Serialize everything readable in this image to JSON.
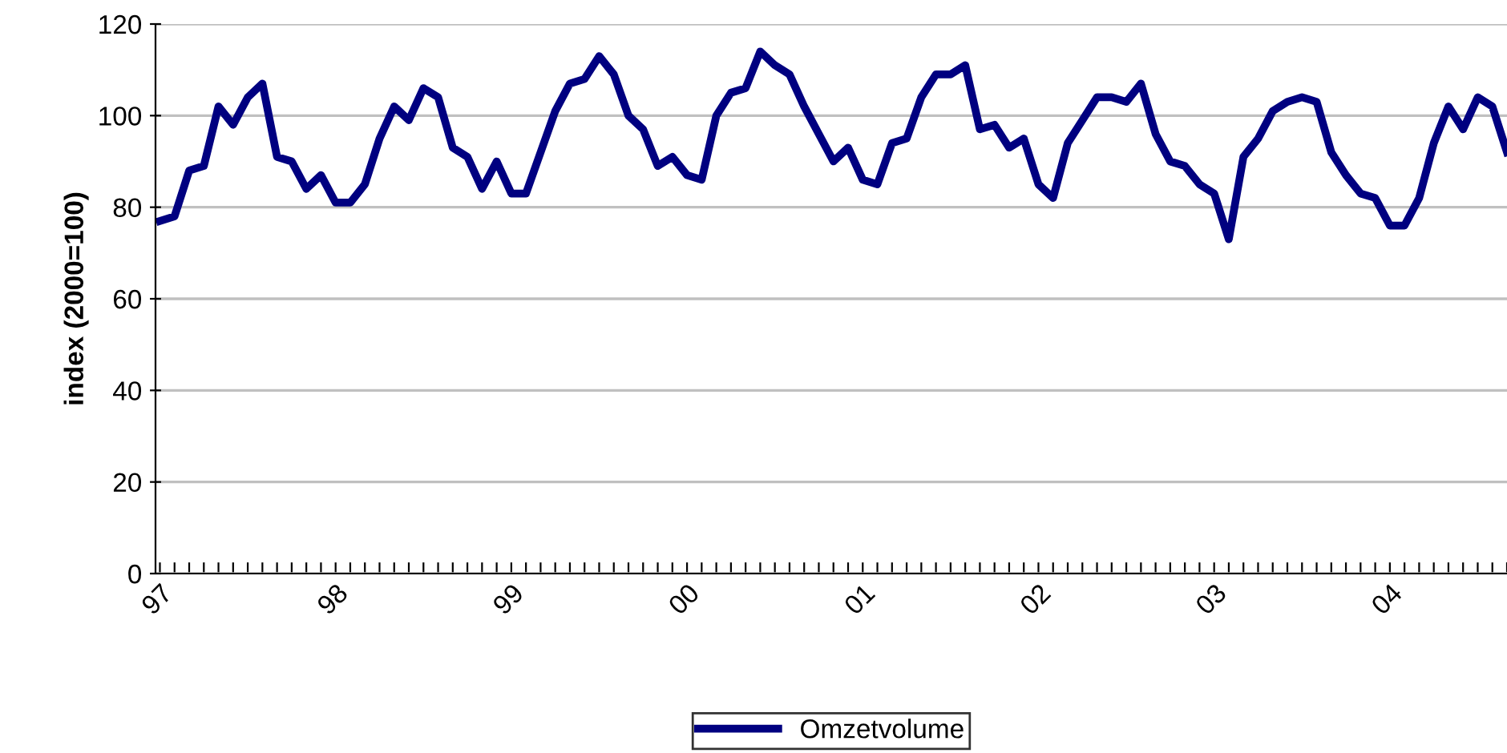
{
  "chart_data": {
    "type": "line",
    "ylabel": "index (2000=100)",
    "categories": [
      "97",
      null,
      null,
      null,
      null,
      null,
      null,
      null,
      null,
      null,
      null,
      null,
      "98",
      null,
      null,
      null,
      null,
      null,
      null,
      null,
      null,
      null,
      null,
      null,
      "99",
      null,
      null,
      null,
      null,
      null,
      null,
      null,
      null,
      null,
      null,
      null,
      "00",
      null,
      null,
      null,
      null,
      null,
      null,
      null,
      null,
      null,
      null,
      null,
      "01",
      null,
      null,
      null,
      null,
      null,
      null,
      null,
      null,
      null,
      null,
      null,
      "02",
      null,
      null,
      null,
      null,
      null,
      null,
      null,
      null,
      null,
      null,
      null,
      "03",
      null,
      null,
      null,
      null,
      null,
      null,
      null,
      null,
      null,
      null,
      null,
      "04",
      null,
      null,
      null,
      null,
      null,
      null,
      null,
      null
    ],
    "series": [
      {
        "name": "Omzetvolume",
        "color": "#000080",
        "values": [
          77,
          78,
          88,
          89,
          102,
          98,
          104,
          107,
          91,
          90,
          84,
          87,
          81,
          81,
          85,
          95,
          102,
          99,
          106,
          104,
          93,
          91,
          84,
          90,
          83,
          83,
          92,
          101,
          107,
          108,
          113,
          109,
          100,
          97,
          89,
          91,
          87,
          86,
          100,
          105,
          106,
          114,
          111,
          109,
          102,
          96,
          90,
          93,
          86,
          85,
          94,
          95,
          104,
          109,
          109,
          111,
          97,
          98,
          93,
          95,
          85,
          82,
          94,
          99,
          104,
          104,
          103,
          107,
          96,
          90,
          89,
          85,
          83,
          73,
          91,
          95,
          101,
          103,
          104,
          103,
          92,
          87,
          83,
          82,
          76,
          76,
          82,
          94,
          102,
          97,
          104,
          102,
          92
        ]
      }
    ],
    "ylim": [
      0,
      120
    ],
    "yticks": [
      0,
      20,
      40,
      60,
      80,
      100,
      120
    ],
    "grid": "y",
    "legend": "bottom",
    "marker": "none",
    "line_style": "solid"
  }
}
